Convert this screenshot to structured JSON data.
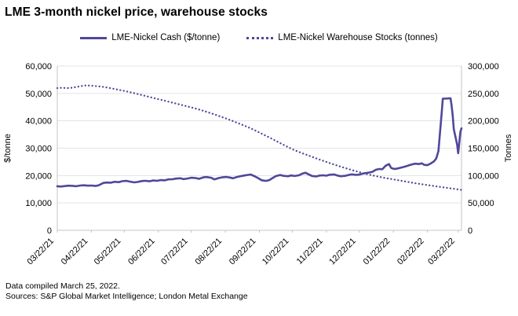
{
  "title": "LME 3-month nickel price, warehouse stocks",
  "legend": [
    {
      "label": "LME-Nickel Cash ($/tonne)",
      "style": "solid"
    },
    {
      "label": "LME-Nickel Warehouse Stocks (tonnes)",
      "style": "dotted"
    }
  ],
  "footer": {
    "line1": "Data compiled March 25, 2022.",
    "line2": "Sources: S&P Global Market Intelligence; London Metal Exchange"
  },
  "colors": {
    "line": "#4f4899",
    "grid": "#e3e3e6",
    "axis": "#c4c4c8",
    "text": "#000000"
  },
  "chart_data": {
    "type": "line",
    "title": "LME 3-month nickel price, warehouse stocks",
    "x_unit": "days since 03/22/21",
    "x_max_day": 368,
    "x_tick_days": [
      0,
      31,
      61,
      92,
      122,
      153,
      184,
      214,
      245,
      275,
      306,
      337,
      365
    ],
    "x_tick_labels": [
      "03/22/21",
      "04/22/21",
      "05/22/21",
      "06/22/21",
      "07/22/21",
      "08/22/21",
      "09/22/21",
      "10/22/21",
      "11/22/21",
      "12/22/21",
      "01/22/22",
      "02/22/22",
      "03/22/22"
    ],
    "grid": true,
    "legend_position": "top",
    "left_axis": {
      "label": "$/tonne",
      "min": 0,
      "max": 60000,
      "step": 10000,
      "tick_labels": [
        "0",
        "10,000",
        "20,000",
        "30,000",
        "40,000",
        "50,000",
        "60,000"
      ]
    },
    "right_axis": {
      "label": "Tonnes",
      "min": 0,
      "max": 300000,
      "step": 50000,
      "tick_labels": [
        "0",
        "50,000",
        "100,000",
        "150,000",
        "200,000",
        "250,000",
        "300,000"
      ]
    },
    "series": [
      {
        "name": "LME-Nickel Cash ($/tonne)",
        "axis": "left",
        "style": "solid",
        "points": [
          [
            0,
            16100
          ],
          [
            3,
            16000
          ],
          [
            7,
            16150
          ],
          [
            10,
            16300
          ],
          [
            14,
            16250
          ],
          [
            17,
            16100
          ],
          [
            21,
            16350
          ],
          [
            24,
            16450
          ],
          [
            28,
            16300
          ],
          [
            31,
            16350
          ],
          [
            35,
            16200
          ],
          [
            38,
            16500
          ],
          [
            42,
            17300
          ],
          [
            45,
            17450
          ],
          [
            49,
            17400
          ],
          [
            52,
            17700
          ],
          [
            56,
            17600
          ],
          [
            59,
            17950
          ],
          [
            63,
            18050
          ],
          [
            66,
            17800
          ],
          [
            70,
            17500
          ],
          [
            73,
            17650
          ],
          [
            77,
            18000
          ],
          [
            80,
            18100
          ],
          [
            84,
            17900
          ],
          [
            87,
            18200
          ],
          [
            91,
            18100
          ],
          [
            94,
            18350
          ],
          [
            98,
            18250
          ],
          [
            101,
            18600
          ],
          [
            105,
            18650
          ],
          [
            108,
            18900
          ],
          [
            112,
            19000
          ],
          [
            115,
            18700
          ],
          [
            119,
            18950
          ],
          [
            122,
            19200
          ],
          [
            126,
            19100
          ],
          [
            129,
            18800
          ],
          [
            133,
            19350
          ],
          [
            136,
            19450
          ],
          [
            140,
            19200
          ],
          [
            143,
            18600
          ],
          [
            147,
            19100
          ],
          [
            150,
            19350
          ],
          [
            154,
            19500
          ],
          [
            157,
            19300
          ],
          [
            160,
            19000
          ],
          [
            163,
            19400
          ],
          [
            166,
            19700
          ],
          [
            170,
            20000
          ],
          [
            173,
            20200
          ],
          [
            176,
            20380
          ],
          [
            180,
            19700
          ],
          [
            183,
            19000
          ],
          [
            186,
            18300
          ],
          [
            190,
            18050
          ],
          [
            193,
            18350
          ],
          [
            196,
            19100
          ],
          [
            199,
            19800
          ],
          [
            203,
            20200
          ],
          [
            206,
            19900
          ],
          [
            210,
            19750
          ],
          [
            213,
            20050
          ],
          [
            216,
            19850
          ],
          [
            220,
            20100
          ],
          [
            223,
            20700
          ],
          [
            226,
            21000
          ],
          [
            229,
            20400
          ],
          [
            232,
            19850
          ],
          [
            236,
            19700
          ],
          [
            239,
            20000
          ],
          [
            242,
            20100
          ],
          [
            245,
            19950
          ],
          [
            248,
            20300
          ],
          [
            252,
            20400
          ],
          [
            255,
            20000
          ],
          [
            258,
            19750
          ],
          [
            262,
            19900
          ],
          [
            265,
            20200
          ],
          [
            268,
            20450
          ],
          [
            272,
            20250
          ],
          [
            275,
            20350
          ],
          [
            278,
            20700
          ],
          [
            281,
            20900
          ],
          [
            284,
            21100
          ],
          [
            287,
            21400
          ],
          [
            290,
            22100
          ],
          [
            293,
            22400
          ],
          [
            296,
            22300
          ],
          [
            299,
            23600
          ],
          [
            302,
            24200
          ],
          [
            304,
            22800
          ],
          [
            307,
            22400
          ],
          [
            310,
            22600
          ],
          [
            313,
            22900
          ],
          [
            317,
            23300
          ],
          [
            320,
            23700
          ],
          [
            323,
            24100
          ],
          [
            326,
            24350
          ],
          [
            329,
            24200
          ],
          [
            332,
            24450
          ],
          [
            334,
            23900
          ],
          [
            337,
            23800
          ],
          [
            340,
            24400
          ],
          [
            343,
            25200
          ],
          [
            345,
            26200
          ],
          [
            347,
            28919
          ],
          [
            350,
            42995
          ],
          [
            351,
            48078
          ],
          [
            355,
            48150
          ],
          [
            358,
            48226
          ],
          [
            359,
            45590
          ],
          [
            360,
            41945
          ],
          [
            361,
            36915
          ],
          [
            364,
            31380
          ],
          [
            365,
            28159
          ],
          [
            366,
            32107
          ],
          [
            367,
            35945
          ],
          [
            368,
            37235
          ]
        ]
      },
      {
        "name": "LME-Nickel Warehouse Stocks (tonnes)",
        "axis": "right",
        "style": "dotted",
        "points": [
          [
            0,
            259700
          ],
          [
            4,
            260200
          ],
          [
            7,
            260000
          ],
          [
            10,
            259600
          ],
          [
            14,
            260500
          ],
          [
            18,
            262000
          ],
          [
            22,
            263600
          ],
          [
            26,
            264500
          ],
          [
            30,
            264200
          ],
          [
            34,
            263500
          ],
          [
            38,
            262800
          ],
          [
            42,
            261800
          ],
          [
            46,
            260500
          ],
          [
            50,
            259000
          ],
          [
            54,
            257400
          ],
          [
            58,
            255800
          ],
          [
            62,
            254200
          ],
          [
            66,
            252400
          ],
          [
            70,
            250500
          ],
          [
            74,
            248500
          ],
          [
            78,
            246500
          ],
          [
            82,
            244500
          ],
          [
            86,
            242500
          ],
          [
            90,
            240500
          ],
          [
            94,
            238500
          ],
          [
            98,
            236500
          ],
          [
            102,
            234500
          ],
          [
            106,
            232500
          ],
          [
            110,
            230500
          ],
          [
            114,
            228500
          ],
          [
            118,
            226500
          ],
          [
            122,
            224500
          ],
          [
            126,
            222300
          ],
          [
            130,
            220000
          ],
          [
            134,
            217600
          ],
          [
            138,
            215000
          ],
          [
            142,
            212400
          ],
          [
            146,
            209600
          ],
          [
            150,
            206800
          ],
          [
            154,
            204000
          ],
          [
            158,
            201000
          ],
          [
            162,
            197800
          ],
          [
            166,
            194600
          ],
          [
            170,
            191400
          ],
          [
            174,
            188000
          ],
          [
            178,
            184400
          ],
          [
            182,
            180600
          ],
          [
            186,
            176600
          ],
          [
            190,
            172600
          ],
          [
            194,
            168600
          ],
          [
            198,
            164400
          ],
          [
            202,
            160200
          ],
          [
            206,
            156000
          ],
          [
            210,
            152000
          ],
          [
            214,
            148200
          ],
          [
            218,
            144800
          ],
          [
            222,
            141600
          ],
          [
            226,
            138600
          ],
          [
            230,
            135600
          ],
          [
            234,
            132600
          ],
          [
            238,
            129800
          ],
          [
            242,
            127000
          ],
          [
            246,
            124200
          ],
          [
            250,
            121400
          ],
          [
            254,
            118800
          ],
          [
            258,
            116200
          ],
          [
            262,
            113800
          ],
          [
            266,
            111400
          ],
          [
            270,
            109000
          ],
          [
            274,
            106800
          ],
          [
            278,
            104600
          ],
          [
            282,
            102600
          ],
          [
            286,
            100800
          ],
          [
            290,
            99000
          ],
          [
            294,
            97400
          ],
          [
            298,
            95800
          ],
          [
            302,
            94400
          ],
          [
            306,
            93000
          ],
          [
            310,
            91600
          ],
          [
            314,
            90200
          ],
          [
            318,
            88800
          ],
          [
            322,
            87400
          ],
          [
            326,
            86000
          ],
          [
            330,
            84800
          ],
          [
            334,
            83600
          ],
          [
            338,
            82400
          ],
          [
            342,
            81200
          ],
          [
            346,
            80000
          ],
          [
            350,
            78900
          ],
          [
            354,
            77800
          ],
          [
            358,
            76700
          ],
          [
            362,
            75600
          ],
          [
            365,
            74700
          ],
          [
            368,
            73800
          ]
        ]
      }
    ]
  }
}
